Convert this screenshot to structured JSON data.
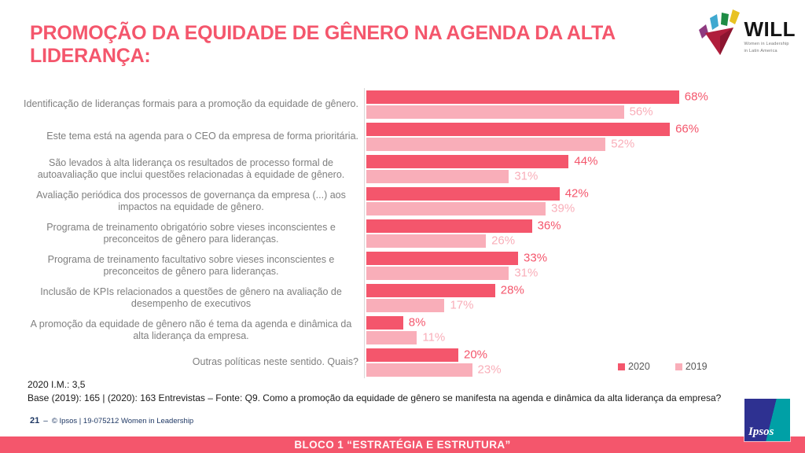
{
  "slide": {
    "title": "PROMOÇÃO DA EQUIDADE DE GÊNERO NA AGENDA DA ALTA LIDERANÇA:",
    "footnote_im": "2020 I.M.: 3,5",
    "footnote_base": "Base (2019): 165 | (2020): 163 Entrevistas – Fonte: Q9. Como a promoção da equidade de gênero se manifesta na agenda e dinâmica da alta liderança da empresa?",
    "page_number": "21",
    "page_separator": "–",
    "page_credit": "© Ipsos | 19-075212 Women in Leadership",
    "footer_banner": "BLOCO 1 “ESTRATÉGIA E ESTRUTURA”"
  },
  "logos": {
    "will": {
      "word": "WILL",
      "subtext1": "Women in Leadership",
      "subtext2": "in Latin America"
    },
    "ipsos": {
      "word": "Ipsos"
    }
  },
  "colors": {
    "accent": "#F4566C",
    "accent_light": "#F9AEB9",
    "label_gray": "#7F7F7F",
    "legend_gray": "#595959",
    "navy": "#1F3864",
    "axis_line": "#D9D9D9"
  },
  "chart_data": {
    "type": "bar",
    "orientation": "horizontal",
    "title": "PROMOÇÃO DA EQUIDADE DE GÊNERO NA AGENDA DA ALTA LIDERANÇA:",
    "xlabel": "",
    "ylabel": "",
    "xlim": [
      0,
      100
    ],
    "grid": false,
    "legend_position": "bottom-right",
    "value_suffix": "%",
    "categories": [
      "Identificação de lideranças formais para a promoção da equidade de gênero.",
      "Este tema está na agenda para o CEO da empresa de forma prioritária.",
      "São levados à alta liderança os resultados de processo formal de autoavaliação que inclui questões relacionadas à equidade de gênero.",
      "Avaliação periódica dos processos de governança da empresa (...) aos impactos na equidade de gênero.",
      "Programa de treinamento obrigatório sobre vieses inconscientes e preconceitos de gênero para lideranças.",
      "Programa de treinamento facultativo sobre vieses inconscientes e preconceitos de gênero para lideranças.",
      "Inclusão de KPIs relacionados a questões de gênero na avaliação de desempenho de executivos",
      "A promoção da equidade de gênero não é tema da agenda e dinâmica da alta liderança da empresa.",
      "Outras políticas neste sentido. Quais?"
    ],
    "series": [
      {
        "name": "2020",
        "color": "#F4566C",
        "values": [
          68,
          66,
          44,
          42,
          36,
          33,
          28,
          8,
          20
        ]
      },
      {
        "name": "2019",
        "color": "#F9AEB9",
        "values": [
          56,
          52,
          31,
          39,
          26,
          31,
          17,
          11,
          23
        ]
      }
    ]
  }
}
